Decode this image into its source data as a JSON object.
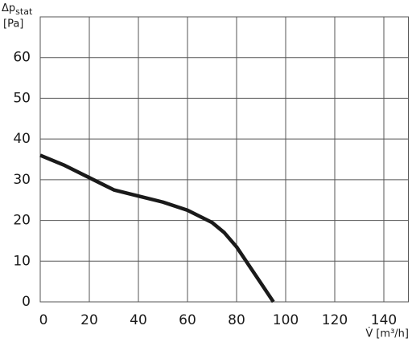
{
  "chart_data": {
    "type": "line",
    "y_label": "Δp",
    "y_label_sub": "stat",
    "y_unit": "[Pa]",
    "x_label": "V̇ [m³/h]",
    "x": [
      0,
      10,
      20,
      30,
      40,
      50,
      60,
      70,
      75,
      80,
      85,
      90,
      95
    ],
    "series": [
      {
        "color": "#1a1a1a",
        "values": [
          36,
          33.5,
          30.5,
          27.5,
          26,
          24.5,
          22.5,
          19.5,
          17,
          13.5,
          9,
          4.5,
          0
        ]
      }
    ],
    "xlim": [
      0,
      150
    ],
    "xticks": [
      0,
      20,
      40,
      60,
      80,
      100,
      120,
      140
    ],
    "ylim": [
      0,
      70
    ],
    "yticks": [
      0,
      10,
      20,
      30,
      40,
      50,
      60
    ],
    "grid": true
  }
}
